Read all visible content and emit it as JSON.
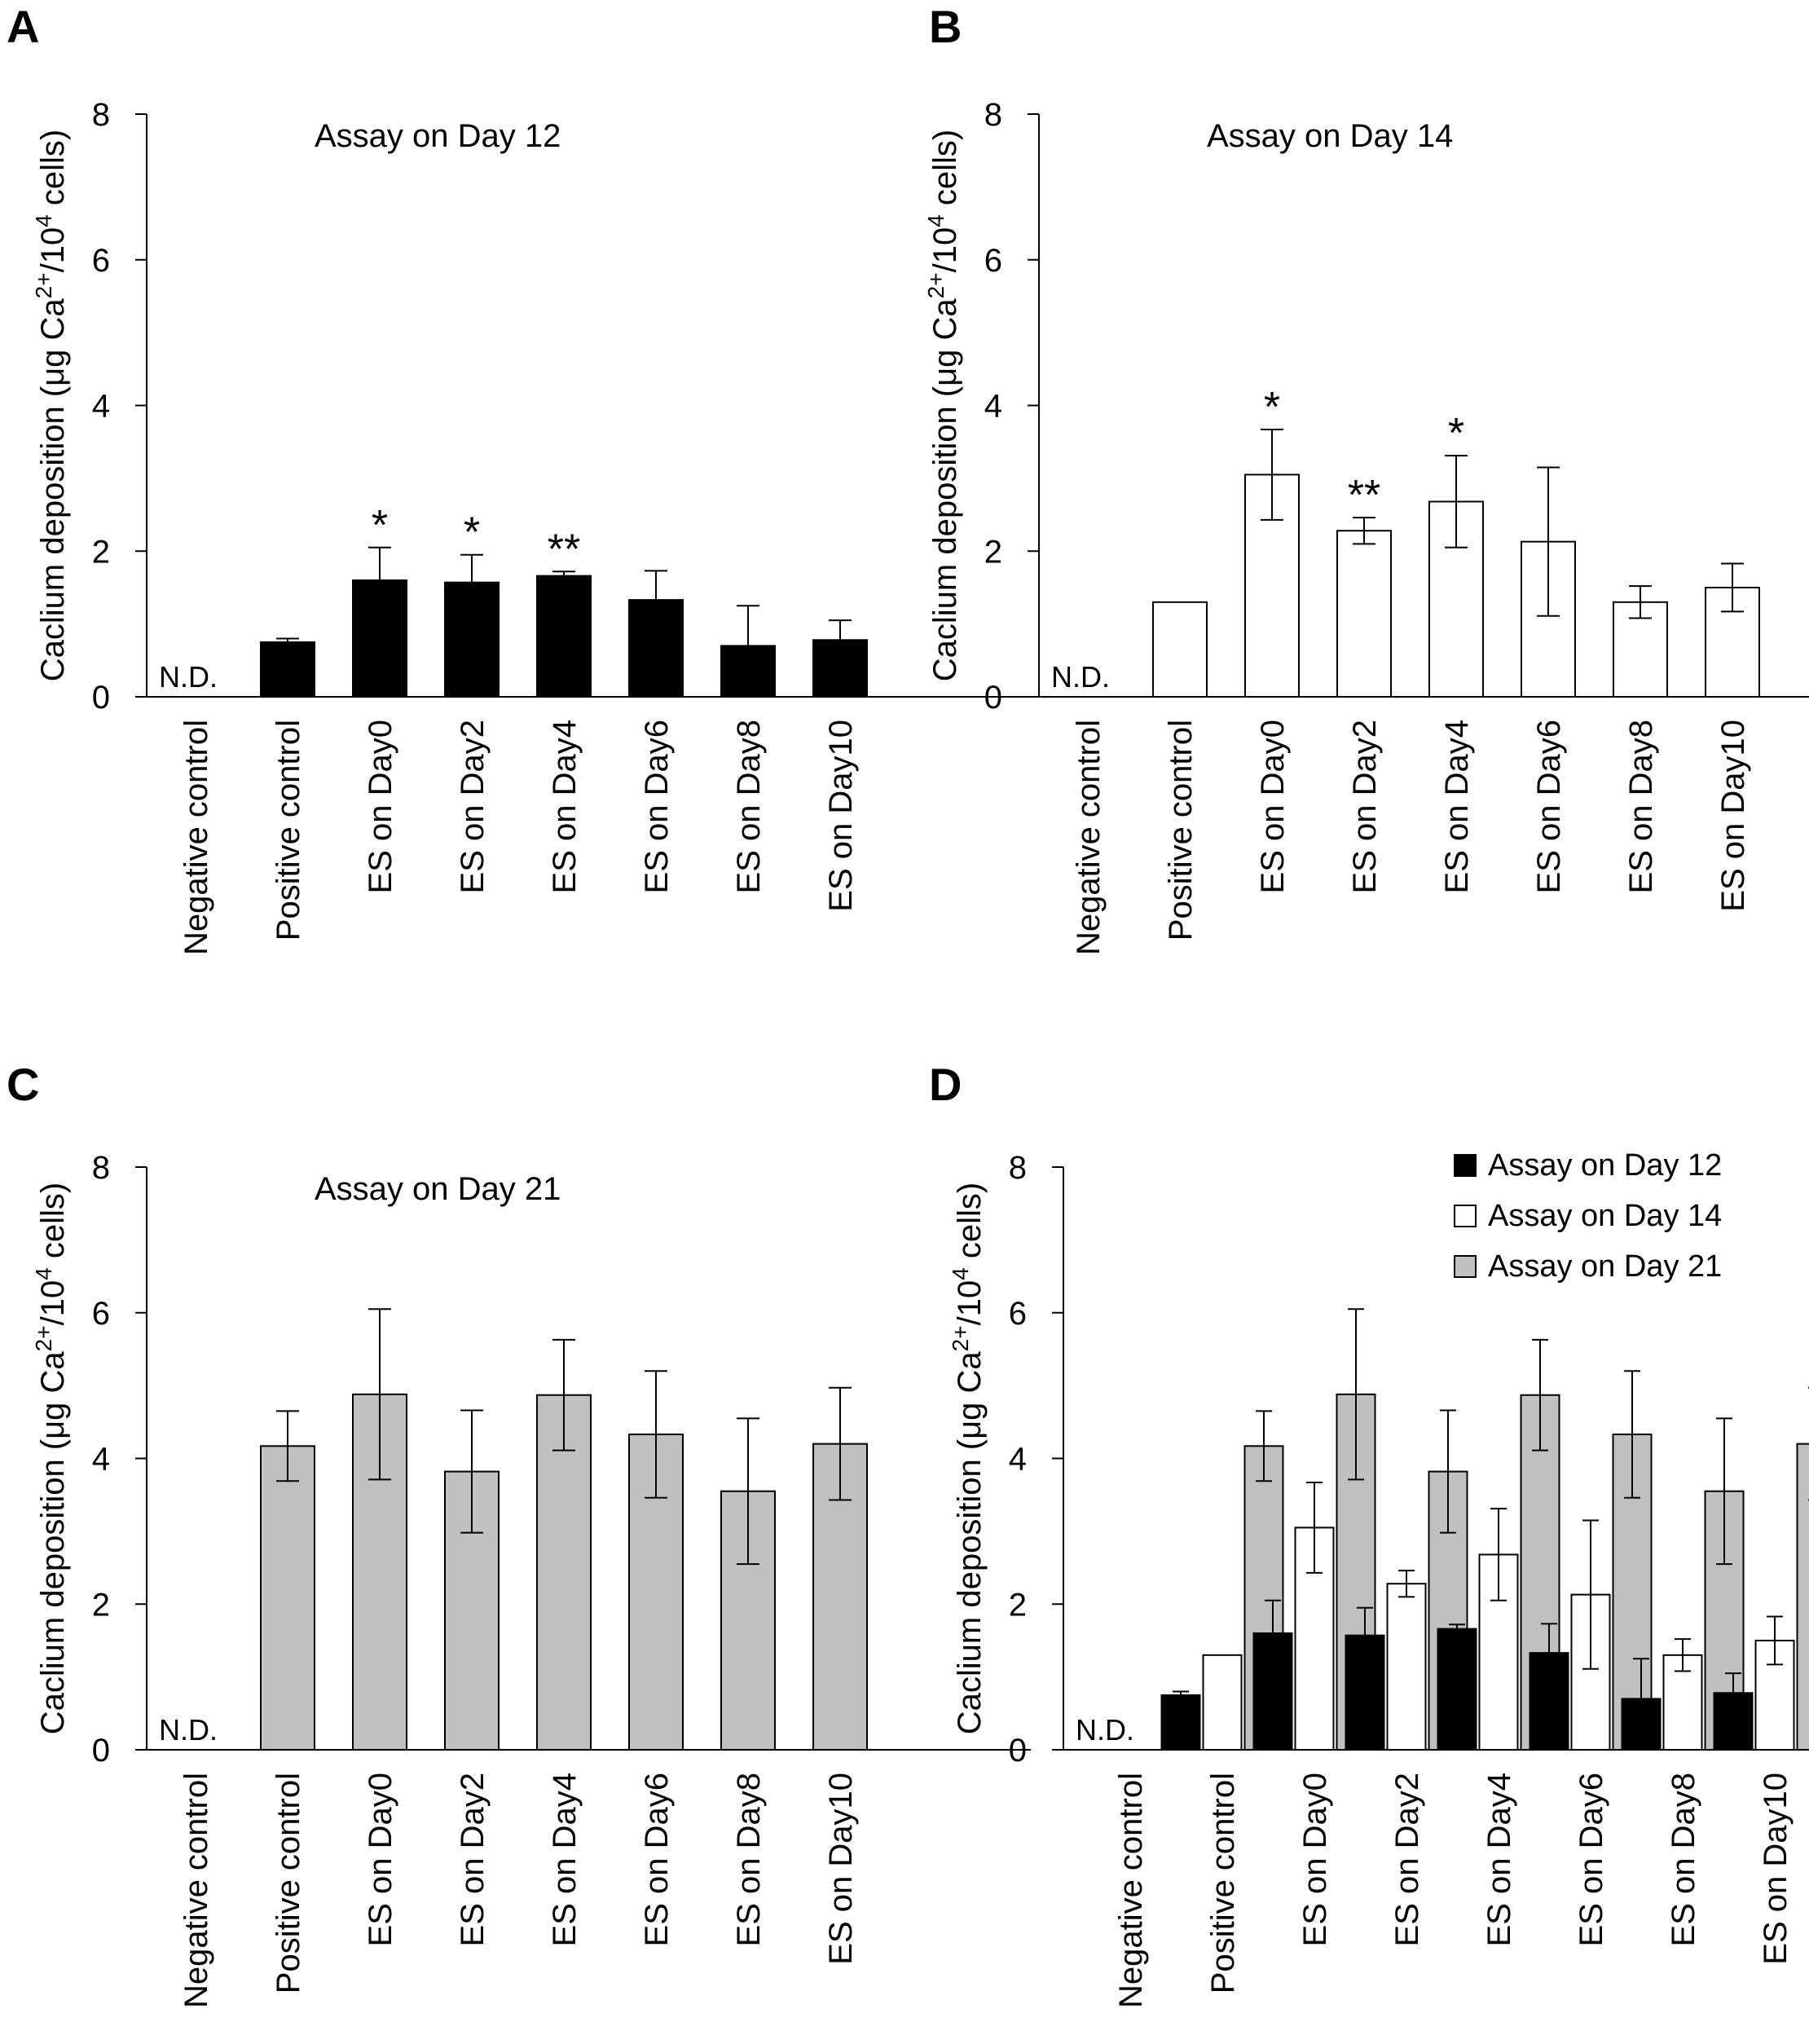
{
  "panel_labels": [
    "A",
    "B",
    "C",
    "D"
  ],
  "nd_label": "N.D.",
  "ylabel_main": "Caclium deposition (μg Ca",
  "ylabel_sup1": "2+",
  "ylabel_mid": "/10",
  "ylabel_sup2": "4",
  "ylabel_end": " cells)",
  "colors": {
    "day12": "#000000",
    "day14": "#ffffff",
    "day21": "#c0c0c0",
    "stroke": "#000000"
  },
  "chart_data": [
    {
      "type": "bar",
      "title": "Assay on Day 12",
      "categories": [
        "Negative control",
        "Positive control",
        "ES on Day0",
        "ES on Day2",
        "ES on Day4",
        "ES on Day6",
        "ES on Day8",
        "ES on Day10"
      ],
      "series": [
        {
          "name": "Assay on Day 12",
          "values": [
            0,
            0.75,
            1.6,
            1.57,
            1.66,
            1.33,
            0.7,
            0.78
          ],
          "errors": [
            0,
            0.05,
            0.45,
            0.38,
            0.06,
            0.4,
            0.55,
            0.27
          ]
        }
      ],
      "annotations": [
        "",
        "",
        "*",
        "*",
        "**",
        "",
        "",
        ""
      ],
      "ylabel": "Caclium deposition (μg Ca2+/104 cells)",
      "ylim": [
        0,
        8
      ],
      "yticks": [
        "0",
        "2",
        "4",
        "6",
        "8"
      ]
    },
    {
      "type": "bar",
      "title": "Assay on Day 14",
      "categories": [
        "Negative control",
        "Positive control",
        "ES on Day0",
        "ES on Day2",
        "ES on Day4",
        "ES on Day6",
        "ES on Day8",
        "ES on Day10"
      ],
      "series": [
        {
          "name": "Assay on Day 14",
          "values": [
            0,
            1.3,
            3.05,
            2.28,
            2.68,
            2.13,
            1.3,
            1.5
          ],
          "errors": [
            0,
            0,
            0.62,
            0.18,
            0.63,
            1.02,
            0.22,
            0.33
          ]
        }
      ],
      "annotations": [
        "",
        "",
        "*",
        "**",
        "*",
        "",
        "",
        ""
      ],
      "ylabel": "Caclium deposition (μg Ca2+/104 cells)",
      "ylim": [
        0,
        8
      ],
      "yticks": [
        "0",
        "2",
        "4",
        "6",
        "8"
      ]
    },
    {
      "type": "bar",
      "title": "Assay on Day 21",
      "categories": [
        "Negative control",
        "Positive control",
        "ES on Day0",
        "ES on Day2",
        "ES on Day4",
        "ES on Day6",
        "ES on Day8",
        "ES on Day10"
      ],
      "series": [
        {
          "name": "Assay on Day 21",
          "values": [
            0,
            4.17,
            4.88,
            3.82,
            4.87,
            4.33,
            3.55,
            4.2
          ],
          "errors": [
            0,
            0.48,
            1.17,
            0.84,
            0.76,
            0.87,
            1.0,
            0.77
          ]
        }
      ],
      "annotations": [
        "",
        "",
        "",
        "",
        "",
        "",
        "",
        ""
      ],
      "ylabel": "Caclium deposition (μg Ca2+/104 cells)",
      "ylim": [
        0,
        8
      ],
      "yticks": [
        "0",
        "2",
        "4",
        "6",
        "8"
      ]
    },
    {
      "type": "bar",
      "title": "",
      "categories": [
        "Negative control",
        "Positive control",
        "ES on Day0",
        "ES on Day2",
        "ES on Day4",
        "ES on Day6",
        "ES on Day8",
        "ES on Day10"
      ],
      "series": [
        {
          "name": "Assay on Day 12",
          "values": [
            0,
            0.75,
            1.6,
            1.57,
            1.66,
            1.33,
            0.7,
            0.78
          ],
          "errors": [
            0,
            0.05,
            0.45,
            0.38,
            0.06,
            0.4,
            0.55,
            0.27
          ]
        },
        {
          "name": "Assay on Day 14",
          "values": [
            0,
            1.3,
            3.05,
            2.28,
            2.68,
            2.13,
            1.3,
            1.5
          ],
          "errors": [
            0,
            0,
            0.62,
            0.18,
            0.63,
            1.02,
            0.22,
            0.33
          ]
        },
        {
          "name": "Assay on Day 21",
          "values": [
            0,
            4.17,
            4.88,
            3.82,
            4.87,
            4.33,
            3.55,
            4.2
          ],
          "errors": [
            0,
            0.48,
            1.17,
            0.84,
            0.76,
            0.87,
            1.0,
            0.77
          ]
        }
      ],
      "legend": "top-right",
      "ylabel": "Caclium deposition (μg Ca2+/104 cells)",
      "ylim": [
        0,
        8
      ],
      "yticks": [
        "0",
        "2",
        "4",
        "6",
        "8"
      ]
    }
  ]
}
